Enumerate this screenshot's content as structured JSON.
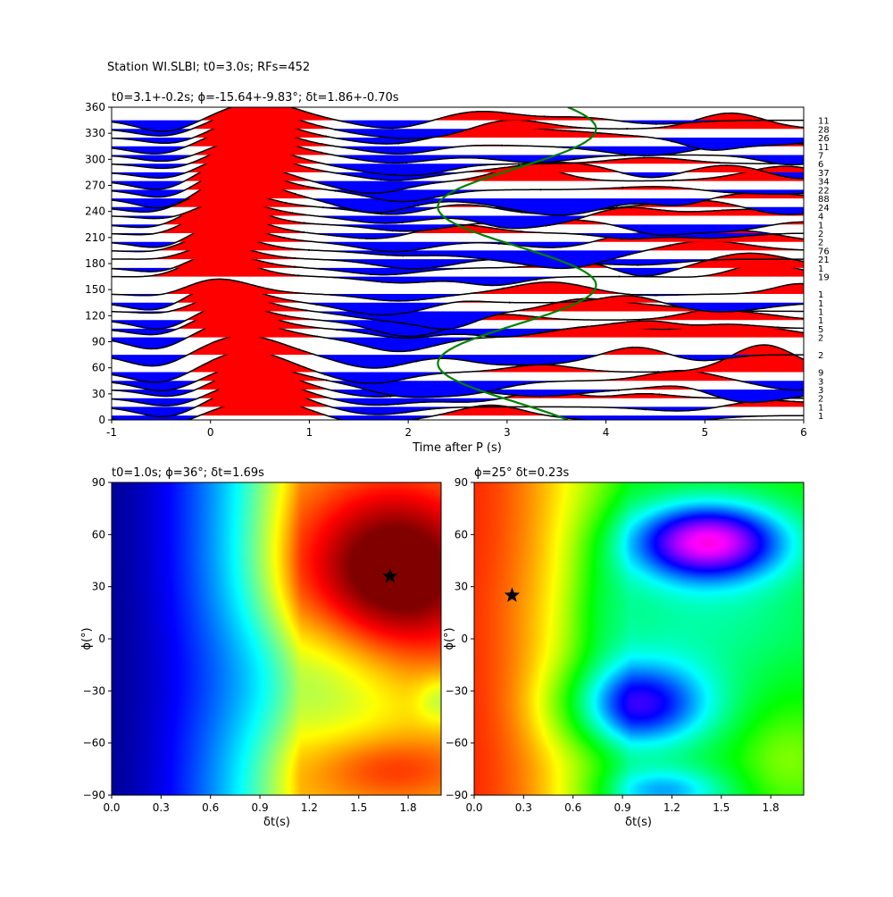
{
  "figure": {
    "suptitle": "Station WI.SLBI; t0=3.0s; RFs=452"
  },
  "chart_data": [
    {
      "type": "line",
      "panel": "receiver-function-traces",
      "title": "t0=3.1+-0.2s; ϕ=-15.64+-9.83°; δt=1.86+-0.70s",
      "xlabel": "Time after P (s)",
      "ylabel": "",
      "xlim": [
        -1,
        6
      ],
      "ylim": [
        0,
        360
      ],
      "xticks": [
        -1,
        0,
        1,
        2,
        3,
        4,
        5,
        6
      ],
      "yticks": [
        0,
        30,
        60,
        90,
        120,
        150,
        180,
        210,
        240,
        270,
        300,
        330,
        360
      ],
      "fill_positive_color": "#ff0000",
      "fill_negative_color": "#0000ff",
      "trace_color": "#000000",
      "fit_curve_color": "#008000",
      "backazimuth_bins": [
        {
          "baz": 5,
          "count": "1"
        },
        {
          "baz": 15,
          "count": "1"
        },
        {
          "baz": 25,
          "count": "2"
        },
        {
          "baz": 35,
          "count": "3"
        },
        {
          "baz": 45,
          "count": "3"
        },
        {
          "baz": 55,
          "count": "9"
        },
        {
          "baz": 75,
          "count": "2"
        },
        {
          "baz": 95,
          "count": "2"
        },
        {
          "baz": 105,
          "count": "5"
        },
        {
          "baz": 115,
          "count": "1"
        },
        {
          "baz": 125,
          "count": "1"
        },
        {
          "baz": 135,
          "count": "1"
        },
        {
          "baz": 145,
          "count": "1"
        },
        {
          "baz": 165,
          "count": "19"
        },
        {
          "baz": 175,
          "count": "1"
        },
        {
          "baz": 185,
          "count": "21"
        },
        {
          "baz": 195,
          "count": "76"
        },
        {
          "baz": 205,
          "count": "2"
        },
        {
          "baz": 215,
          "count": "2"
        },
        {
          "baz": 225,
          "count": "1"
        },
        {
          "baz": 235,
          "count": "4"
        },
        {
          "baz": 245,
          "count": "24"
        },
        {
          "baz": 255,
          "count": "88"
        },
        {
          "baz": 265,
          "count": "22"
        },
        {
          "baz": 275,
          "count": "34"
        },
        {
          "baz": 285,
          "count": "37"
        },
        {
          "baz": 295,
          "count": "6"
        },
        {
          "baz": 305,
          "count": "7"
        },
        {
          "baz": 315,
          "count": "11"
        },
        {
          "baz": 325,
          "count": "26"
        },
        {
          "baz": 335,
          "count": "28"
        },
        {
          "baz": 345,
          "count": "11"
        }
      ]
    },
    {
      "type": "heatmap",
      "panel": "misfit-grid-left",
      "title": "t0=1.0s; ϕ=36°; δt=1.69s",
      "xlabel": "δt(s)",
      "ylabel": "ϕ(°)",
      "xlim": [
        0,
        2
      ],
      "ylim": [
        -90,
        90
      ],
      "xticks": [
        "0.0",
        "0.3",
        "0.6",
        "0.9",
        "1.2",
        "1.5",
        "1.8"
      ],
      "yticks": [
        "90",
        "60",
        "30",
        "0",
        "−30",
        "−60",
        "−90"
      ],
      "colormap": "jet",
      "best_fit": {
        "dt": 1.69,
        "phi": 36
      },
      "marker": "star"
    },
    {
      "type": "heatmap",
      "panel": "misfit-grid-right",
      "title": "ϕ=25° δt=0.23s",
      "xlabel": "δt(s)",
      "ylabel": "ϕ(°)",
      "xlim": [
        0,
        2
      ],
      "ylim": [
        -90,
        90
      ],
      "xticks": [
        "0.0",
        "0.3",
        "0.6",
        "0.9",
        "1.2",
        "1.5",
        "1.8"
      ],
      "yticks": [
        "90",
        "60",
        "30",
        "0",
        "−30",
        "−60",
        "−90"
      ],
      "colormap": "hsv",
      "best_fit": {
        "dt": 0.23,
        "phi": 25
      },
      "marker": "star"
    }
  ]
}
